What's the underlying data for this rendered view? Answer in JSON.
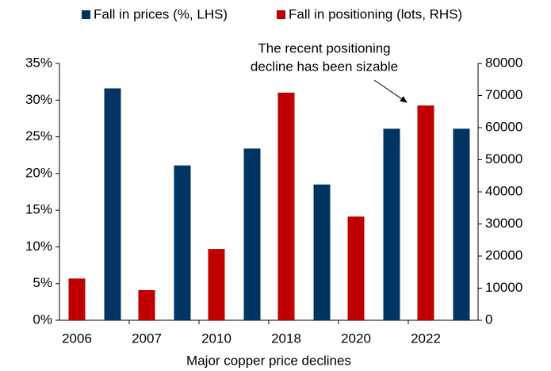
{
  "chart_data": {
    "type": "bar",
    "xlabel": "Major copper price declines",
    "annotation": [
      "The recent positioning",
      "decline has been sizable"
    ],
    "categories": [
      "2006",
      "2007",
      "2010",
      "2018",
      "2020",
      "2022"
    ],
    "series": [
      {
        "name": "Fall in prices (%, LHS)",
        "color": "#003462",
        "values": [
          31.6,
          21.1,
          23.4,
          18.5,
          26.1,
          26.1
        ]
      },
      {
        "name": "Fall in positioning (lots, RHS)",
        "color": "#c00000",
        "axis": "y2",
        "values": [
          13000,
          9400,
          22200,
          70900,
          32300,
          66900
        ]
      }
    ],
    "ylim": [
      0,
      35
    ],
    "yticks": [
      {
        "value": 0,
        "label": "0%"
      },
      {
        "value": 5,
        "label": "5%"
      },
      {
        "value": 10,
        "label": "10%"
      },
      {
        "value": 15,
        "label": "15%"
      },
      {
        "value": 20,
        "label": "20%"
      },
      {
        "value": 25,
        "label": "25%"
      },
      {
        "value": 30,
        "label": "30%"
      },
      {
        "value": 35,
        "label": "35%"
      }
    ],
    "y2lim": [
      0,
      80000
    ],
    "y2ticks": [
      0,
      10000,
      20000,
      30000,
      40000,
      50000,
      60000,
      70000,
      80000
    ],
    "grid": false,
    "legend": "top"
  }
}
